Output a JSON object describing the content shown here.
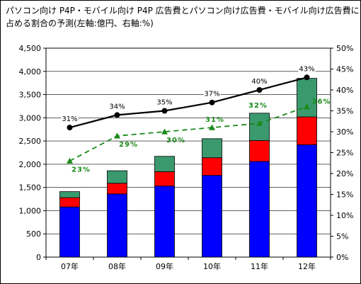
{
  "title_lines": [
    "パソコン向け P4P・モバイル向け P4P 広告費とパソコン向け広告費・モバイル向け広告費に",
    "占める割合の予測(左軸:億円、右軸:%)"
  ],
  "chart_data": {
    "type": "bar",
    "subtype": "stacked bar with two line series on secondary axis",
    "categories": [
      "07年",
      "08年",
      "09年",
      "10年",
      "11年",
      "12年"
    ],
    "stack_series": [
      {
        "values": [
          1080,
          1360,
          1530,
          1760,
          2060,
          2420
        ],
        "color": "#0000ff"
      },
      {
        "values": [
          200,
          230,
          310,
          380,
          450,
          600
        ],
        "color": "#ff0000"
      },
      {
        "values": [
          130,
          270,
          330,
          410,
          590,
          830
        ],
        "color": "#3a9a6e"
      }
    ],
    "line_series": [
      {
        "values": [
          31,
          34,
          35,
          37,
          40,
          43
        ],
        "labels": [
          "31%",
          "34%",
          "35%",
          "37%",
          "40%",
          "43%"
        ],
        "color": "#000000",
        "style": "solid",
        "marker": "circle"
      },
      {
        "values": [
          23,
          29,
          30,
          31,
          32,
          36
        ],
        "labels": [
          "23%",
          "29%",
          "30%",
          "31%",
          "32%",
          "36%"
        ],
        "color": "#1a8a1a",
        "style": "dashed",
        "marker": "triangle"
      }
    ],
    "y_left": {
      "min": 0,
      "max": 4500,
      "step": 500,
      "tick_labels": [
        "0",
        "500",
        "1,000",
        "1,500",
        "2,000",
        "2,500",
        "3,000",
        "3,500",
        "4,000",
        "4,500"
      ]
    },
    "y_right": {
      "min": 0,
      "max": 50,
      "step": 5,
      "tick_labels": [
        "0%",
        "5%",
        "10%",
        "15%",
        "20%",
        "25%",
        "30%",
        "35%",
        "40%",
        "45%",
        "50%"
      ]
    },
    "grid": true,
    "legend": "none"
  }
}
